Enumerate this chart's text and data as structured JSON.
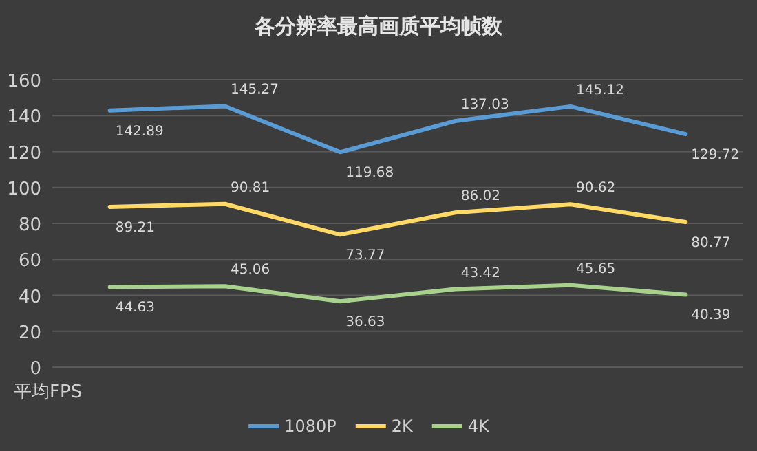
{
  "chart_data": {
    "type": "line",
    "title": "各分辨率最高画质平均帧数",
    "ylabel": "平均FPS",
    "categories": [
      null,
      null,
      null,
      null,
      null,
      null
    ],
    "series": [
      {
        "name": "1080P",
        "color": "#5b9bd5",
        "values": [
          142.89,
          145.27,
          119.68,
          137.03,
          145.12,
          129.72
        ]
      },
      {
        "name": "2K",
        "color": "#ffd966",
        "values": [
          89.21,
          90.81,
          73.77,
          86.02,
          90.62,
          80.77
        ]
      },
      {
        "name": "4K",
        "color": "#a9d18e",
        "values": [
          44.63,
          45.06,
          36.63,
          43.42,
          45.65,
          40.39
        ]
      }
    ],
    "ylim": [
      0,
      160
    ],
    "yticks": [
      0,
      20,
      40,
      60,
      80,
      100,
      120,
      140,
      160
    ],
    "grid": "y",
    "legend": "bottom",
    "data_labels": true,
    "marker": "none",
    "line_style": "solid"
  }
}
